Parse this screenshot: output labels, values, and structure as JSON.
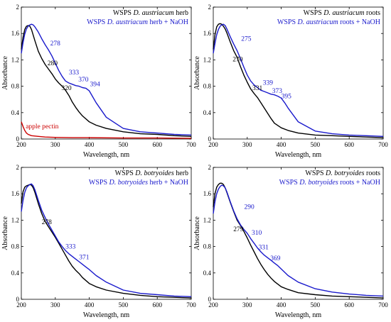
{
  "chart_data": [
    {
      "type": "line",
      "xlabel": "Wavelength, nm",
      "ylabel": "Absorbance",
      "xlim": [
        200,
        700
      ],
      "ylim": [
        0,
        2
      ],
      "xticks": [
        "200",
        "300",
        "400",
        "500",
        "600",
        "700"
      ],
      "yticks": [
        "0",
        "0.4",
        "0.8",
        "1.2",
        "1.6",
        "2"
      ],
      "legend": [
        {
          "prefix": "WSPS ",
          "species": "D. austriacum",
          "suffix": " herb",
          "color": "#000000"
        },
        {
          "prefix": "WSPS ",
          "species": "D. austriacum",
          "suffix": " herb + NaOH",
          "color": "#1a1acc"
        }
      ],
      "legend_position": "top-right",
      "series": [
        {
          "color": "#000000",
          "x": [
            200,
            205,
            210,
            215,
            220,
            225,
            230,
            240,
            250,
            260,
            270,
            280,
            290,
            300,
            310,
            320,
            330,
            340,
            350,
            360,
            370,
            380,
            400,
            420,
            450,
            500,
            550,
            600,
            650,
            700
          ],
          "values": [
            1.36,
            1.54,
            1.66,
            1.71,
            1.72,
            1.71,
            1.66,
            1.49,
            1.33,
            1.22,
            1.13,
            1.06,
            0.99,
            0.91,
            0.85,
            0.8,
            0.74,
            0.66,
            0.56,
            0.48,
            0.41,
            0.35,
            0.26,
            0.21,
            0.16,
            0.11,
            0.08,
            0.07,
            0.05,
            0.04
          ]
        },
        {
          "color": "#1a1acc",
          "x": [
            200,
            205,
            210,
            215,
            220,
            225,
            230,
            235,
            240,
            250,
            260,
            270,
            280,
            290,
            300,
            310,
            320,
            330,
            340,
            350,
            360,
            370,
            380,
            390,
            400,
            410,
            420,
            450,
            500,
            550,
            600,
            650,
            700
          ],
          "values": [
            1.3,
            1.46,
            1.59,
            1.67,
            1.71,
            1.73,
            1.74,
            1.73,
            1.7,
            1.62,
            1.52,
            1.43,
            1.35,
            1.26,
            1.15,
            1.04,
            0.95,
            0.88,
            0.85,
            0.83,
            0.81,
            0.8,
            0.78,
            0.77,
            0.73,
            0.64,
            0.55,
            0.33,
            0.16,
            0.11,
            0.09,
            0.07,
            0.06
          ]
        },
        {
          "color": "#cc0000",
          "x": [
            200,
            205,
            210,
            215,
            220,
            230,
            250,
            270,
            300,
            350,
            400,
            500,
            600,
            700
          ],
          "values": [
            0.26,
            0.19,
            0.13,
            0.09,
            0.07,
            0.05,
            0.04,
            0.03,
            0.025,
            0.02,
            0.02,
            0.015,
            0.015,
            0.01
          ]
        }
      ],
      "annotations": [
        {
          "text": "278",
          "x": 285,
          "y": 1.42,
          "color": "#1a1acc"
        },
        {
          "text": "280",
          "x": 277,
          "y": 1.12,
          "color": "#000000"
        },
        {
          "text": "333",
          "x": 340,
          "y": 0.98,
          "color": "#1a1acc"
        },
        {
          "text": "370",
          "x": 368,
          "y": 0.87,
          "color": "#1a1acc"
        },
        {
          "text": "394",
          "x": 402,
          "y": 0.8,
          "color": "#1a1acc"
        },
        {
          "text": "320",
          "x": 318,
          "y": 0.74,
          "color": "#000000"
        },
        {
          "text": "apple pectin",
          "x": 213,
          "y": 0.16,
          "color": "#cc0000"
        }
      ]
    },
    {
      "type": "line",
      "xlabel": "Wavelength, nm",
      "ylabel": "Absorbance",
      "xlim": [
        200,
        700
      ],
      "ylim": [
        0,
        2
      ],
      "xticks": [
        "200",
        "300",
        "400",
        "500",
        "600",
        "700"
      ],
      "yticks": [
        "0",
        "0.4",
        "0.8",
        "1.2",
        "1.6",
        "2"
      ],
      "legend": [
        {
          "prefix": "WSPS ",
          "species": "D. austriacum",
          "suffix": " roots",
          "color": "#000000"
        },
        {
          "prefix": "WSPS ",
          "species": "D. austriacum",
          "suffix": " roots + NaOH",
          "color": "#1a1acc"
        }
      ],
      "legend_position": "top-right",
      "series": [
        {
          "color": "#000000",
          "x": [
            200,
            205,
            210,
            215,
            220,
            225,
            230,
            235,
            240,
            250,
            260,
            270,
            280,
            290,
            300,
            310,
            320,
            330,
            340,
            350,
            360,
            370,
            380,
            400,
            420,
            450,
            500,
            550,
            600,
            650,
            700
          ],
          "values": [
            1.36,
            1.58,
            1.7,
            1.74,
            1.75,
            1.74,
            1.71,
            1.67,
            1.61,
            1.47,
            1.34,
            1.24,
            1.1,
            0.97,
            0.86,
            0.76,
            0.69,
            0.63,
            0.55,
            0.47,
            0.39,
            0.31,
            0.24,
            0.17,
            0.13,
            0.09,
            0.06,
            0.05,
            0.04,
            0.03,
            0.02
          ]
        },
        {
          "color": "#1a1acc",
          "x": [
            200,
            205,
            210,
            215,
            220,
            225,
            230,
            235,
            240,
            250,
            260,
            270,
            280,
            290,
            300,
            310,
            320,
            330,
            340,
            350,
            360,
            370,
            380,
            390,
            400,
            410,
            420,
            450,
            500,
            550,
            600,
            650,
            700
          ],
          "values": [
            1.3,
            1.45,
            1.58,
            1.66,
            1.71,
            1.73,
            1.74,
            1.72,
            1.67,
            1.55,
            1.44,
            1.34,
            1.22,
            1.09,
            0.97,
            0.88,
            0.82,
            0.78,
            0.74,
            0.72,
            0.7,
            0.68,
            0.67,
            0.65,
            0.62,
            0.55,
            0.47,
            0.26,
            0.12,
            0.08,
            0.06,
            0.05,
            0.04
          ]
        }
      ],
      "annotations": [
        {
          "text": "275",
          "x": 282,
          "y": 1.49,
          "color": "#1a1acc"
        },
        {
          "text": "270",
          "x": 257,
          "y": 1.18,
          "color": "#000000"
        },
        {
          "text": "339",
          "x": 346,
          "y": 0.82,
          "color": "#1a1acc"
        },
        {
          "text": "331",
          "x": 315,
          "y": 0.74,
          "color": "#000000"
        },
        {
          "text": "373",
          "x": 373,
          "y": 0.7,
          "color": "#1a1acc"
        },
        {
          "text": "395",
          "x": 400,
          "y": 0.62,
          "color": "#1a1acc"
        }
      ]
    },
    {
      "type": "line",
      "xlabel": "Wavelength, nm",
      "ylabel": "Absorbance",
      "xlim": [
        200,
        700
      ],
      "ylim": [
        0,
        2
      ],
      "xticks": [
        "200",
        "300",
        "400",
        "500",
        "600",
        "700"
      ],
      "yticks": [
        "0",
        "0.4",
        "0.8",
        "1.2",
        "1.6",
        "2"
      ],
      "legend": [
        {
          "prefix": "WSPS ",
          "species": "D. botryoides",
          "suffix": " herb",
          "color": "#000000"
        },
        {
          "prefix": "WSPS ",
          "species": "D. botryoides",
          "suffix": " herb + NaOH",
          "color": "#1a1acc"
        }
      ],
      "legend_position": "top-right",
      "series": [
        {
          "color": "#000000",
          "x": [
            200,
            205,
            210,
            215,
            220,
            225,
            230,
            235,
            240,
            250,
            260,
            270,
            280,
            290,
            300,
            310,
            320,
            330,
            340,
            350,
            360,
            370,
            380,
            400,
            420,
            450,
            500,
            550,
            600,
            650,
            700
          ],
          "values": [
            1.45,
            1.63,
            1.7,
            1.72,
            1.73,
            1.74,
            1.73,
            1.69,
            1.62,
            1.45,
            1.3,
            1.18,
            1.1,
            1.02,
            0.94,
            0.85,
            0.76,
            0.67,
            0.58,
            0.5,
            0.44,
            0.39,
            0.33,
            0.24,
            0.19,
            0.14,
            0.09,
            0.06,
            0.04,
            0.03,
            0.02
          ]
        },
        {
          "color": "#1a1acc",
          "x": [
            200,
            205,
            210,
            215,
            220,
            225,
            230,
            235,
            240,
            250,
            260,
            270,
            280,
            290,
            300,
            310,
            320,
            330,
            340,
            350,
            360,
            370,
            380,
            390,
            400,
            420,
            450,
            500,
            550,
            600,
            650,
            700
          ],
          "values": [
            1.33,
            1.5,
            1.62,
            1.69,
            1.72,
            1.74,
            1.75,
            1.72,
            1.66,
            1.5,
            1.35,
            1.24,
            1.14,
            1.05,
            0.96,
            0.87,
            0.8,
            0.74,
            0.69,
            0.65,
            0.61,
            0.57,
            0.53,
            0.49,
            0.45,
            0.36,
            0.26,
            0.14,
            0.09,
            0.07,
            0.05,
            0.04
          ]
        }
      ],
      "annotations": [
        {
          "text": "278",
          "x": 260,
          "y": 1.14,
          "color": "#000000"
        },
        {
          "text": "333",
          "x": 330,
          "y": 0.77,
          "color": "#1a1acc"
        },
        {
          "text": "371",
          "x": 370,
          "y": 0.61,
          "color": "#1a1acc"
        }
      ]
    },
    {
      "type": "line",
      "xlabel": "Wavelength, nm",
      "ylabel": "Absorbance",
      "xlim": [
        200,
        700
      ],
      "ylim": [
        0,
        2
      ],
      "xticks": [
        "200",
        "300",
        "400",
        "500",
        "600",
        "700"
      ],
      "yticks": [
        "0",
        "0.4",
        "0.8",
        "1.2",
        "1.6",
        "2"
      ],
      "legend": [
        {
          "prefix": "WSPS ",
          "species": "D. botryoides",
          "suffix": " roots",
          "color": "#000000"
        },
        {
          "prefix": "WSPS ",
          "species": "D. botryoides",
          "suffix": " roots + NaOH",
          "color": "#1a1acc"
        }
      ],
      "legend_position": "top-right",
      "series": [
        {
          "color": "#000000",
          "x": [
            200,
            205,
            210,
            215,
            220,
            225,
            230,
            235,
            240,
            250,
            260,
            270,
            280,
            290,
            300,
            310,
            320,
            330,
            340,
            350,
            360,
            370,
            380,
            400,
            420,
            450,
            500,
            550,
            600,
            650,
            700
          ],
          "values": [
            1.4,
            1.6,
            1.7,
            1.74,
            1.76,
            1.76,
            1.74,
            1.69,
            1.62,
            1.47,
            1.33,
            1.2,
            1.12,
            1.03,
            0.93,
            0.82,
            0.72,
            0.62,
            0.53,
            0.45,
            0.38,
            0.32,
            0.27,
            0.19,
            0.15,
            0.1,
            0.07,
            0.05,
            0.04,
            0.03,
            0.02
          ]
        },
        {
          "color": "#1a1acc",
          "x": [
            200,
            205,
            210,
            215,
            220,
            225,
            230,
            235,
            240,
            250,
            260,
            270,
            280,
            290,
            300,
            310,
            320,
            330,
            340,
            350,
            360,
            370,
            380,
            390,
            400,
            420,
            450,
            500,
            550,
            600,
            650,
            700
          ],
          "values": [
            1.3,
            1.48,
            1.6,
            1.67,
            1.71,
            1.73,
            1.72,
            1.69,
            1.63,
            1.48,
            1.34,
            1.22,
            1.13,
            1.06,
            1.0,
            0.92,
            0.85,
            0.78,
            0.72,
            0.67,
            0.63,
            0.59,
            0.55,
            0.51,
            0.46,
            0.36,
            0.26,
            0.16,
            0.11,
            0.08,
            0.06,
            0.05
          ]
        }
      ],
      "annotations": [
        {
          "text": "290",
          "x": 291,
          "y": 1.37,
          "color": "#1a1acc"
        },
        {
          "text": "279",
          "x": 259,
          "y": 1.03,
          "color": "#000000"
        },
        {
          "text": "310",
          "x": 313,
          "y": 0.98,
          "color": "#1a1acc"
        },
        {
          "text": "331",
          "x": 333,
          "y": 0.76,
          "color": "#1a1acc"
        },
        {
          "text": "369",
          "x": 368,
          "y": 0.59,
          "color": "#1a1acc"
        }
      ]
    }
  ]
}
